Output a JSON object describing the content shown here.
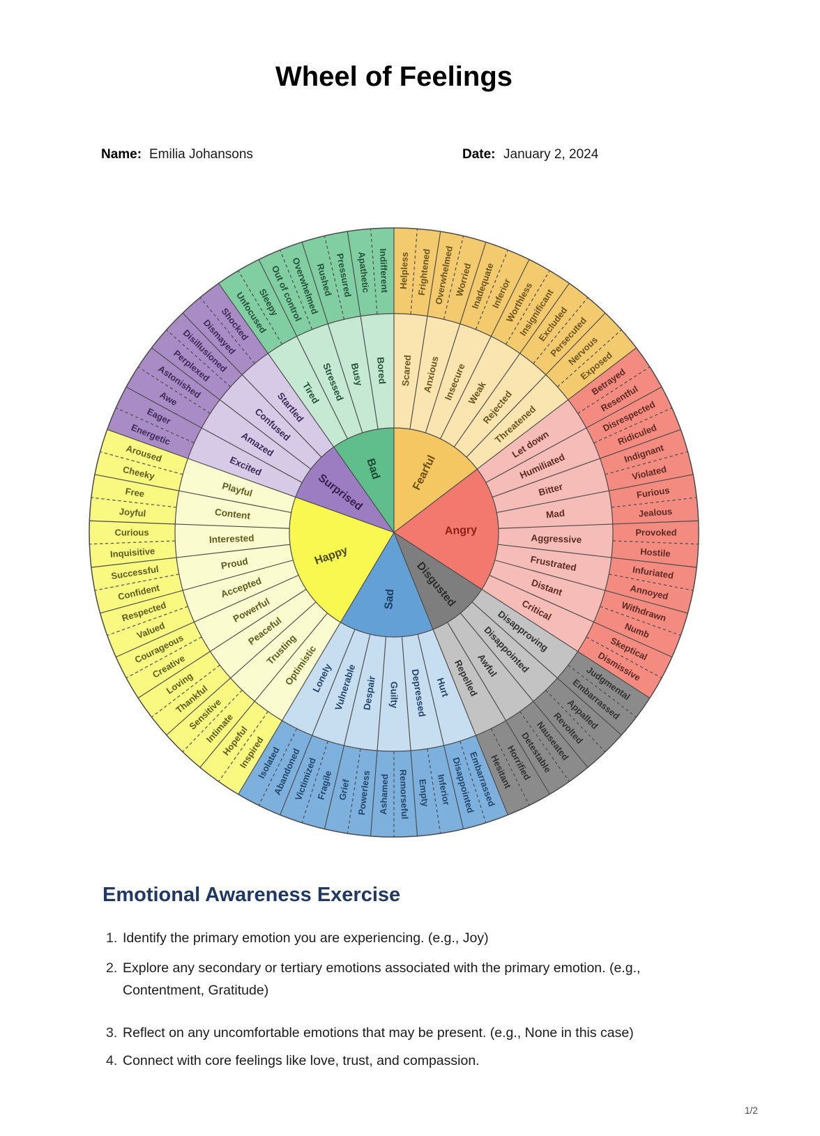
{
  "page": {
    "title": "Wheel of Feelings",
    "name_label": "Name:",
    "name_value": "Emilia Johansons",
    "date_label": "Date:",
    "date_value": "January 2, 2024",
    "page_indicator": "1/2"
  },
  "exercise": {
    "heading": "Emotional Awareness Exercise",
    "heading_color": "#1F3864",
    "items": [
      {
        "num": "1.",
        "text": "Identify the primary emotion you are experiencing. (e.g., Joy)"
      },
      {
        "num": "2.",
        "text": "Explore any secondary or tertiary emotions associated with the primary emotion. (e.g., Contentment, Gratitude)"
      },
      {
        "num": "3.",
        "text": "Reflect on any uncomfortable emotions that may be present. (e.g., None in this case)"
      },
      {
        "num": "4.",
        "text": "Connect with core feelings like love, trust, and compassion."
      }
    ]
  },
  "chart_data": {
    "type": "pie",
    "variant": "feelings-wheel-sunburst-3-rings",
    "title": "Wheel of Feelings",
    "rotation": "starts at 12 o'clock between Bad and Fearful, clockwise",
    "stroke_color": "#4A4A4A",
    "ring_radii": {
      "core": 150,
      "middle": 314,
      "outer": 437
    },
    "label_radii": {
      "core": 96,
      "middle": 233,
      "outer": 376
    },
    "sectors": [
      {
        "name": "Fearful",
        "colors": {
          "core": "#F4C763",
          "middle": "#FAE5B0",
          "outer": "#F4CA6E",
          "label": "#6A551F",
          "core_label": "#6B4E11"
        },
        "middle": [
          "Scared",
          "Anxious",
          "Insecure",
          "Weak",
          "Rejected",
          "Threatened"
        ],
        "outer": [
          "Helpless",
          "Frightened",
          "Overwhelmed",
          "Worried",
          "Inadequate",
          "Inferior",
          "Worthless",
          "Insignificant",
          "Excluded",
          "Persecuted",
          "Nervous",
          "Exposed"
        ]
      },
      {
        "name": "Angry",
        "colors": {
          "core": "#F3796F",
          "middle": "#F6BDB8",
          "outer": "#F38B81",
          "label": "#5D2B24",
          "core_label": "#8B2015"
        },
        "middle": [
          "Let down",
          "Humiliated",
          "Bitter",
          "Mad",
          "Aggressive",
          "Frustrated",
          "Distant",
          "Critical"
        ],
        "outer": [
          "Betrayed",
          "Resentful",
          "Disrespected",
          "Ridiculed",
          "Indignant",
          "Violated",
          "Furious",
          "Jealous",
          "Provoked",
          "Hostile",
          "Infuriated",
          "Annoyed",
          "Withdrawn",
          "Numb",
          "Skeptical",
          "Dismissive"
        ]
      },
      {
        "name": "Disgusted",
        "colors": {
          "core": "#7E7E7E",
          "middle": "#C3C3C3",
          "outer": "#8B8B8B",
          "label": "#333333",
          "core_label": "#2D2D2D"
        },
        "middle": [
          "Disapproving",
          "Disappointed",
          "Awful",
          "Repelled"
        ],
        "outer": [
          "Judgmental",
          "Embarrassed",
          "Appalled",
          "Revolted",
          "Nauseated",
          "Detestable",
          "Horrified",
          "Hesitant"
        ]
      },
      {
        "name": "Sad",
        "colors": {
          "core": "#62A0D6",
          "middle": "#C7DEF1",
          "outer": "#7DB0DC",
          "label": "#24466A",
          "core_label": "#1D3D62"
        },
        "middle": [
          "Hurt",
          "Depressed",
          "Guilty",
          "Despair",
          "Vulnerable",
          "Lonely"
        ],
        "outer": [
          "Embarrassed",
          "Disappointed",
          "Inferior",
          "Empty",
          "Remorseful",
          "Ashamed",
          "Powerless",
          "Grief",
          "Fragile",
          "Victimized",
          "Abandoned",
          "Isolated"
        ]
      },
      {
        "name": "Happy",
        "colors": {
          "core": "#F8F851",
          "middle": "#FBFBD0",
          "outer": "#F9F982",
          "label": "#5C5C1E",
          "core_label": "#494910"
        },
        "middle": [
          "Optimistic",
          "Trusting",
          "Peaceful",
          "Powerful",
          "Accepted",
          "Proud",
          "Interested",
          "Content",
          "Playful"
        ],
        "outer": [
          "Inspired",
          "Hopeful",
          "Intimate",
          "Sensitive",
          "Thankful",
          "Loving",
          "Creative",
          "Courageous",
          "Valued",
          "Respected",
          "Confident",
          "Successful",
          "Inquisitive",
          "Curious",
          "Joyful",
          "Free",
          "Cheeky",
          "Aroused"
        ]
      },
      {
        "name": "Surprised",
        "colors": {
          "core": "#9C7DC1",
          "middle": "#D7CAE6",
          "outer": "#A98CC6",
          "label": "#3F2A58",
          "core_label": "#372050"
        },
        "middle": [
          "Excited",
          "Amazed",
          "Confused",
          "Startled"
        ],
        "outer": [
          "Energetic",
          "Eager",
          "Awe",
          "Astonished",
          "Perplexed",
          "Disillusioned",
          "Dismayed",
          "Shocked"
        ]
      },
      {
        "name": "Bad",
        "colors": {
          "core": "#5FBE8B",
          "middle": "#C6E9D4",
          "outer": "#81CEA3",
          "label": "#24523A",
          "core_label": "#1B4A32"
        },
        "middle": [
          "Tired",
          "Stressed",
          "Busy",
          "Bored"
        ],
        "outer": [
          "Unfocused",
          "Sleepy",
          "Out of control",
          "Overwhelmed",
          "Rushed",
          "Pressured",
          "Apathetic",
          "Indifferent"
        ]
      }
    ]
  }
}
